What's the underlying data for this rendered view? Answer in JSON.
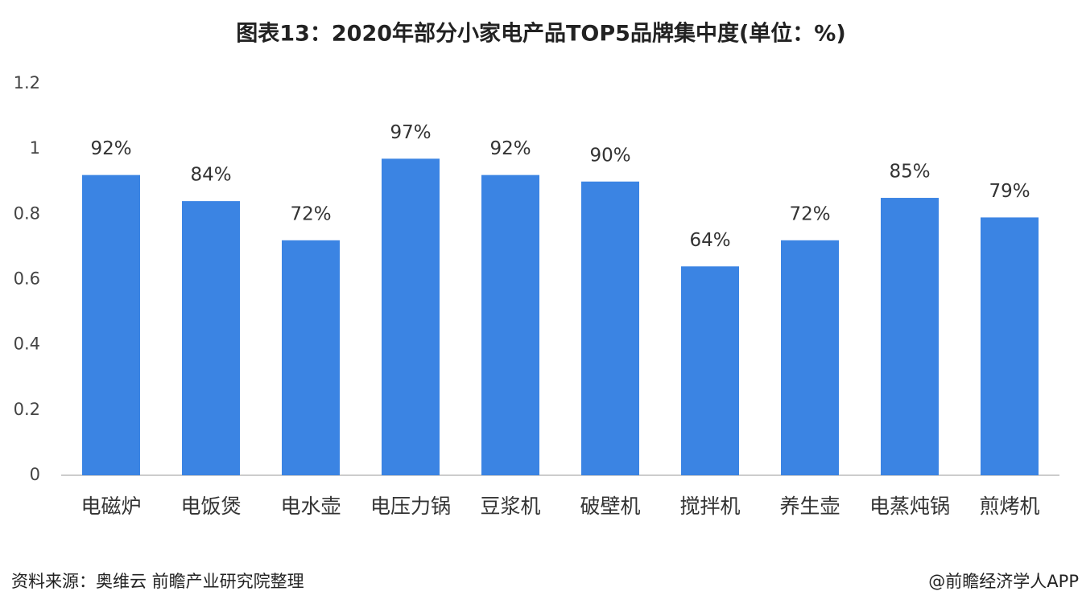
{
  "chart_data": {
    "type": "bar",
    "title": "图表13：2020年部分小家电产品TOP5品牌集中度(单位：%)",
    "categories": [
      "电磁炉",
      "电饭煲",
      "电水壶",
      "电压力锅",
      "豆浆机",
      "破壁机",
      "搅拌机",
      "养生壶",
      "电蒸炖锅",
      "煎烤机"
    ],
    "values": [
      0.92,
      0.84,
      0.72,
      0.97,
      0.92,
      0.9,
      0.64,
      0.72,
      0.85,
      0.79
    ],
    "value_labels": [
      "92%",
      "84%",
      "72%",
      "97%",
      "92%",
      "90%",
      "64%",
      "72%",
      "85%",
      "79%"
    ],
    "color": "#3b84e3",
    "ylim": [
      0,
      1.2
    ],
    "yticks": [
      0,
      0.2,
      0.4,
      0.6,
      0.8,
      1,
      1.2
    ],
    "grid": false
  },
  "source": "资料来源：奥维云 前瞻产业研究院整理",
  "credit": "@前瞻经济学人APP"
}
